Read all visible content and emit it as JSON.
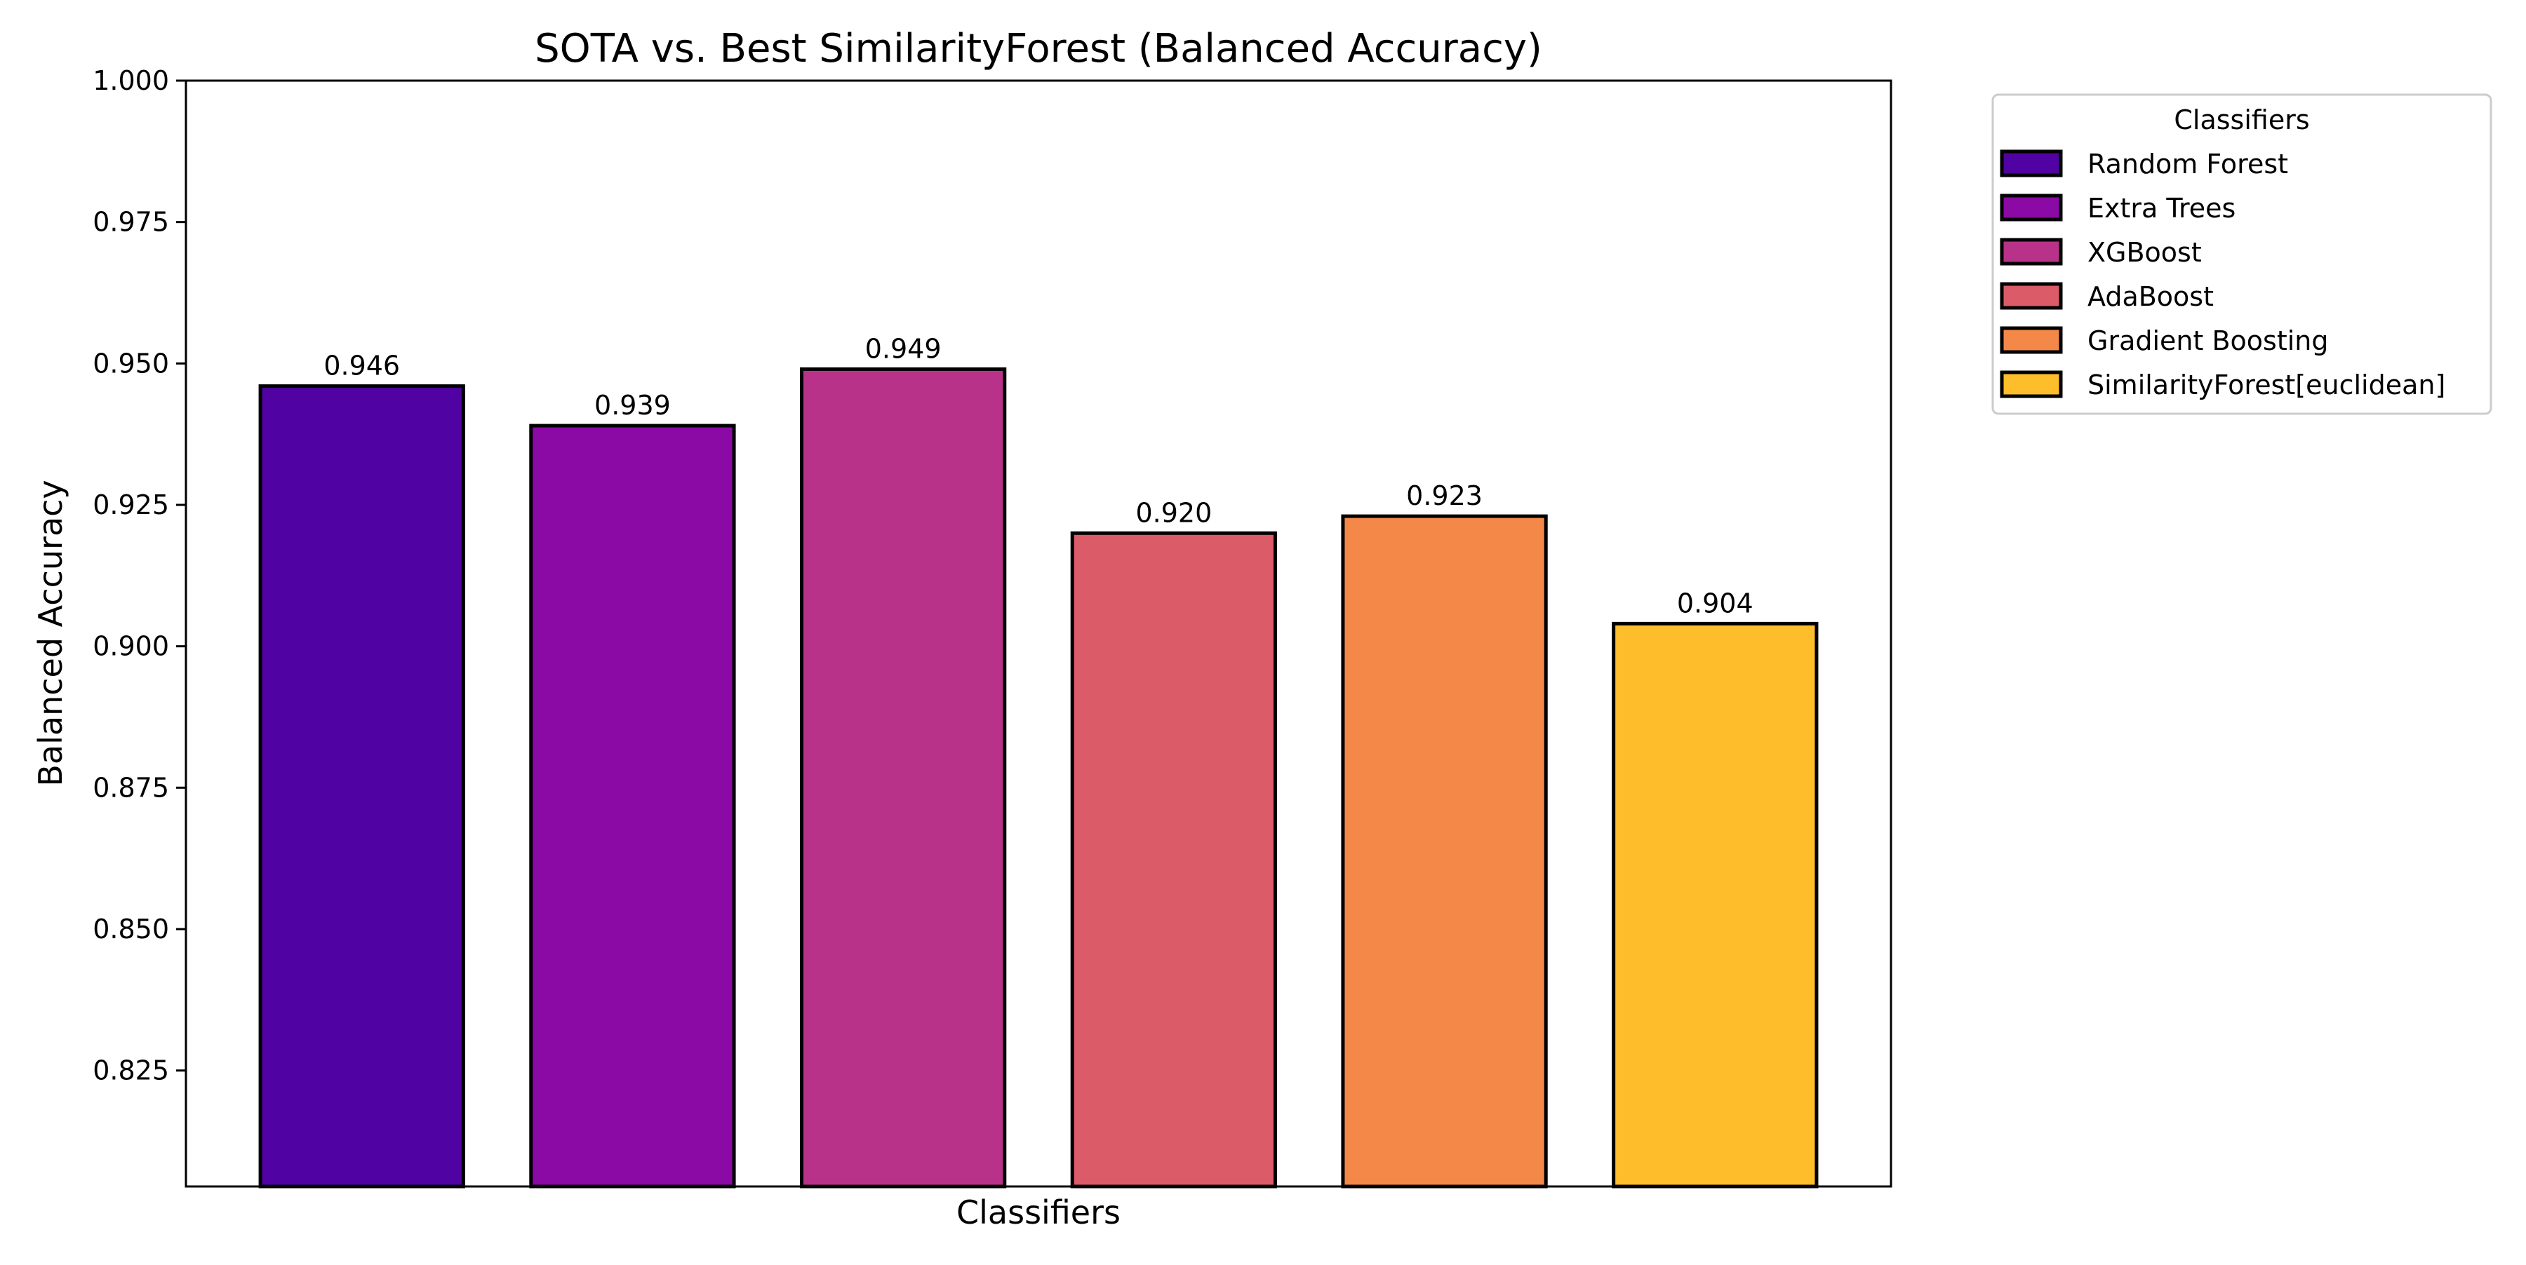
{
  "chart_data": {
    "type": "bar",
    "title": "SOTA vs. Best SimilarityForest (Balanced Accuracy)",
    "xlabel": "Classifiers",
    "ylabel": "Balanced Accuracy",
    "ylim": [
      0.8045,
      1.0
    ],
    "yticks": [
      "0.825",
      "0.850",
      "0.875",
      "0.900",
      "0.925",
      "0.950",
      "0.975",
      "1.000"
    ],
    "ytick_values": [
      0.825,
      0.85,
      0.875,
      0.9,
      0.925,
      0.95,
      0.975,
      1.0
    ],
    "categories": [
      "Random Forest",
      "Extra Trees",
      "XGBoost",
      "AdaBoost",
      "Gradient Boosting",
      "SimilarityForest[euclidean]"
    ],
    "values": [
      0.946,
      0.939,
      0.949,
      0.92,
      0.923,
      0.904
    ],
    "value_labels": [
      "0.946",
      "0.939",
      "0.949",
      "0.920",
      "0.923",
      "0.904"
    ],
    "colors": [
      "#5002a3",
      "#8b0aa5",
      "#b93289",
      "#db5c68",
      "#f48849",
      "#febd2a"
    ],
    "edge_color": "#000000",
    "grid": false,
    "legend": {
      "title": "Classifiers",
      "placement": "outside-top-right"
    }
  }
}
